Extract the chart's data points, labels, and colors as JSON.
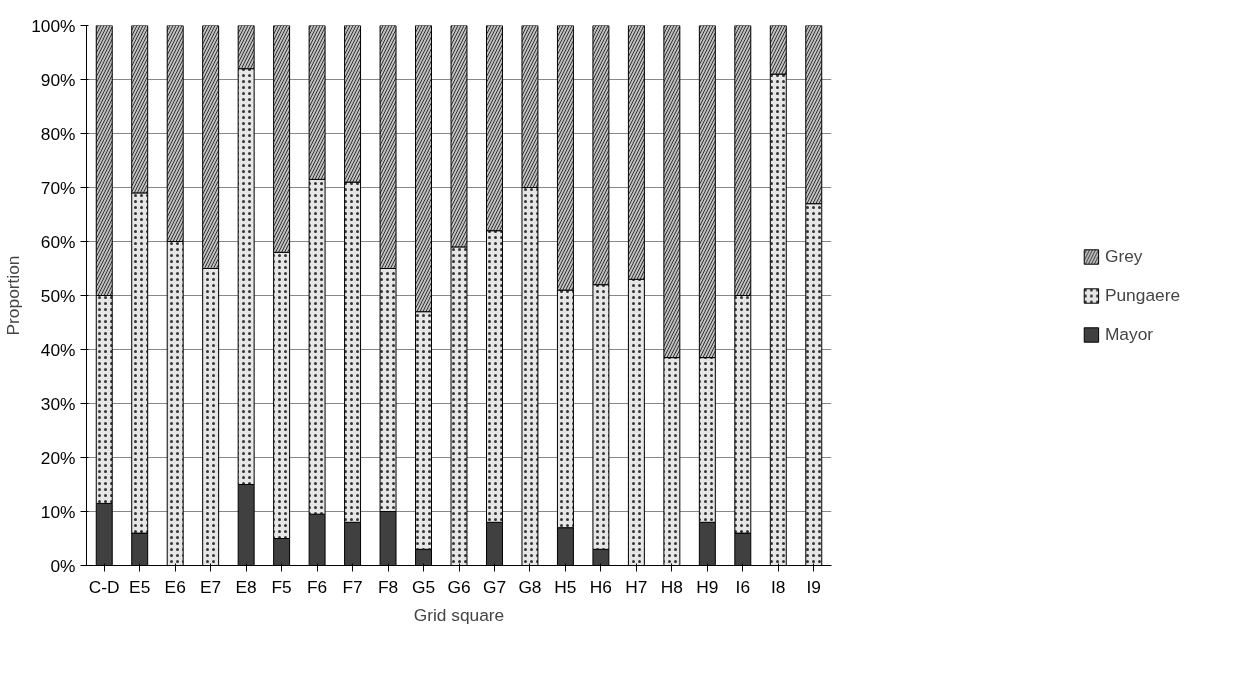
{
  "chart_data": {
    "type": "bar",
    "stacked": true,
    "xlabel": "Grid square",
    "ylabel": "Proportion",
    "categories": [
      "C-D",
      "E5",
      "E6",
      "E7",
      "E8",
      "F5",
      "F6",
      "F7",
      "F8",
      "G5",
      "G6",
      "G7",
      "G8",
      "H5",
      "H6",
      "H7",
      "H8",
      "H9",
      "I6",
      "I8",
      "I9"
    ],
    "series": [
      {
        "name": "Mayor",
        "color": "#404040",
        "values": [
          11.5,
          6,
          0,
          0,
          15,
          5,
          9.5,
          8,
          10,
          3,
          0,
          8,
          0,
          7,
          3,
          0,
          0,
          8,
          6,
          0,
          0
        ]
      },
      {
        "name": "Pungaere",
        "color": "#e6e6e6",
        "values": [
          38.5,
          63,
          60,
          55,
          77,
          53,
          62,
          63,
          45,
          44,
          59,
          54,
          70,
          44,
          49,
          53,
          38.5,
          30.5,
          44,
          91,
          67
        ]
      },
      {
        "name": "Grey",
        "color": "#bfbfbf",
        "values": [
          50,
          31,
          40,
          45,
          8,
          42,
          28.5,
          29,
          45,
          53,
          41,
          38,
          30,
          49,
          48,
          47,
          61.5,
          61.5,
          50,
          9,
          33
        ]
      }
    ],
    "ylim": [
      0,
      100
    ],
    "yticks": [
      {
        "value": 0,
        "label": "0%"
      },
      {
        "value": 10,
        "label": "10%"
      },
      {
        "value": 20,
        "label": "20%"
      },
      {
        "value": 30,
        "label": "30%"
      },
      {
        "value": 40,
        "label": "40%"
      },
      {
        "value": 50,
        "label": "50%"
      },
      {
        "value": 60,
        "label": "60%"
      },
      {
        "value": 70,
        "label": "70%"
      },
      {
        "value": 80,
        "label": "80%"
      },
      {
        "value": 90,
        "label": "90%"
      },
      {
        "value": 100,
        "label": "100%"
      }
    ],
    "grid": "y",
    "legend": "right"
  }
}
